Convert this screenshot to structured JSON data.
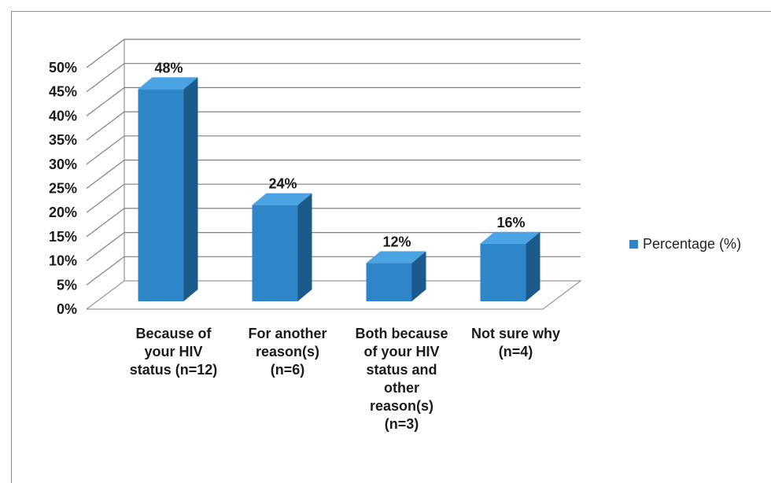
{
  "chart_data": {
    "type": "bar",
    "categories": [
      "Because of\nyour HIV\nstatus (n=12)",
      "For another\nreason(s)\n(n=6)",
      "Both because\nof your HIV\nstatus and\nother\nreason(s)\n(n=3)",
      "Not sure why\n(n=4)"
    ],
    "series": [
      {
        "name": "Percentage (%)",
        "values": [
          48,
          24,
          12,
          16
        ]
      }
    ],
    "data_labels": [
      "48%",
      "24%",
      "12%",
      "16%"
    ],
    "y_ticks": [
      "0%",
      "5%",
      "10%",
      "15%",
      "20%",
      "25%",
      "30%",
      "35%",
      "40%",
      "45%",
      "50%"
    ],
    "ylim": [
      0,
      50
    ],
    "grid": true,
    "legend": "right",
    "style": "3d-clustered-column",
    "colors": {
      "bar_front": "#2e86c9",
      "bar_side": "#1b5a8a",
      "bar_top": "#4aa3e3",
      "grid": "#7f7f7f"
    }
  }
}
